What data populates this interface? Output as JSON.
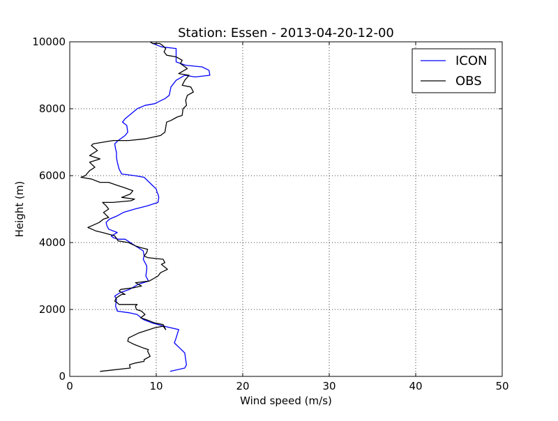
{
  "chart_data": {
    "type": "line",
    "title": "Station: Essen - 2013-04-20-12-00",
    "xlabel": "Wind speed (m/s)",
    "ylabel": "Height (m)",
    "xlim": [
      0,
      50
    ],
    "ylim": [
      0,
      10000
    ],
    "xticks": [
      0,
      10,
      20,
      30,
      40,
      50
    ],
    "yticks": [
      0,
      2000,
      4000,
      6000,
      8000,
      10000
    ],
    "grid": true,
    "legend_position": "top-right",
    "series": [
      {
        "name": "ICON",
        "color": "#0000ff",
        "points": [
          [
            11.6,
            150
          ],
          [
            13.3,
            250
          ],
          [
            13.5,
            350
          ],
          [
            13.4,
            500
          ],
          [
            13.3,
            700
          ],
          [
            12.7,
            850
          ],
          [
            12.1,
            1000
          ],
          [
            12.3,
            1150
          ],
          [
            12.6,
            1400
          ],
          [
            10.9,
            1500
          ],
          [
            9.5,
            1600
          ],
          [
            8.5,
            1700
          ],
          [
            7.8,
            1850
          ],
          [
            6.9,
            1900
          ],
          [
            5.5,
            1950
          ],
          [
            5.3,
            2100
          ],
          [
            5.4,
            2300
          ],
          [
            5.2,
            2400
          ],
          [
            5.8,
            2500
          ],
          [
            6.9,
            2600
          ],
          [
            7.9,
            2750
          ],
          [
            9.1,
            2850
          ],
          [
            8.8,
            3000
          ],
          [
            8.9,
            3200
          ],
          [
            8.9,
            3300
          ],
          [
            8.7,
            3400
          ],
          [
            8.5,
            3500
          ],
          [
            8.6,
            3600
          ],
          [
            8.5,
            3750
          ],
          [
            7.3,
            3950
          ],
          [
            7.0,
            4000
          ],
          [
            6.4,
            4100
          ],
          [
            5.6,
            4100
          ],
          [
            5.0,
            4150
          ],
          [
            4.8,
            4200
          ],
          [
            5.5,
            4300
          ],
          [
            4.5,
            4400
          ],
          [
            4.3,
            4500
          ],
          [
            4.2,
            4600
          ],
          [
            4.6,
            4700
          ],
          [
            5.5,
            4800
          ],
          [
            6.2,
            4900
          ],
          [
            7.5,
            5000
          ],
          [
            9.0,
            5100
          ],
          [
            10.2,
            5200
          ],
          [
            10.3,
            5350
          ],
          [
            10.2,
            5450
          ],
          [
            10.1,
            5500
          ],
          [
            10.0,
            5600
          ],
          [
            9.6,
            5700
          ],
          [
            9.2,
            5800
          ],
          [
            8.6,
            5950
          ],
          [
            7.5,
            6000
          ],
          [
            6.0,
            6050
          ],
          [
            5.7,
            6200
          ],
          [
            5.5,
            6400
          ],
          [
            5.4,
            6550
          ],
          [
            5.4,
            6700
          ],
          [
            5.3,
            6800
          ],
          [
            5.2,
            6950
          ],
          [
            5.6,
            7050
          ],
          [
            6.4,
            7200
          ],
          [
            6.7,
            7300
          ],
          [
            6.6,
            7500
          ],
          [
            6.1,
            7600
          ],
          [
            6.4,
            7700
          ],
          [
            7.8,
            8000
          ],
          [
            8.7,
            8100
          ],
          [
            9.8,
            8150
          ],
          [
            11.0,
            8300
          ],
          [
            11.5,
            8400
          ],
          [
            11.7,
            8650
          ],
          [
            12.3,
            8850
          ],
          [
            13.3,
            9000
          ],
          [
            14.5,
            8950
          ],
          [
            16.2,
            9000
          ],
          [
            16.1,
            9150
          ],
          [
            15.3,
            9250
          ],
          [
            13.4,
            9300
          ],
          [
            12.3,
            9400
          ],
          [
            12.3,
            9550
          ],
          [
            12.3,
            9700
          ],
          [
            12.3,
            9800
          ],
          [
            10.6,
            9850
          ],
          [
            9.6,
            9950
          ],
          [
            9.3,
            10000
          ]
        ]
      },
      {
        "name": "OBS",
        "color": "#000000",
        "points": [
          [
            3.5,
            150
          ],
          [
            7.0,
            250
          ],
          [
            6.9,
            350
          ],
          [
            7.6,
            400
          ],
          [
            8.6,
            450
          ],
          [
            8.6,
            500
          ],
          [
            9.3,
            600
          ],
          [
            9.0,
            750
          ],
          [
            9.1,
            800
          ],
          [
            8.5,
            850
          ],
          [
            7.5,
            950
          ],
          [
            6.7,
            1050
          ],
          [
            6.8,
            1150
          ],
          [
            8.0,
            1300
          ],
          [
            9.8,
            1450
          ],
          [
            10.8,
            1500
          ],
          [
            11.1,
            1400
          ],
          [
            10.8,
            1550
          ],
          [
            9.8,
            1600
          ],
          [
            8.8,
            1700
          ],
          [
            8.2,
            1750
          ],
          [
            8.7,
            1850
          ],
          [
            8.3,
            1950
          ],
          [
            7.7,
            2000
          ],
          [
            7.6,
            2100
          ],
          [
            7.8,
            2150
          ],
          [
            6.9,
            2150
          ],
          [
            6.0,
            2150
          ],
          [
            5.7,
            2150
          ],
          [
            5.5,
            2200
          ],
          [
            5.2,
            2250
          ],
          [
            5.4,
            2350
          ],
          [
            6.0,
            2450
          ],
          [
            6.4,
            2450
          ],
          [
            5.7,
            2550
          ],
          [
            5.9,
            2600
          ],
          [
            7.4,
            2650
          ],
          [
            8.3,
            2700
          ],
          [
            7.6,
            2800
          ],
          [
            9.2,
            2850
          ],
          [
            10.2,
            3000
          ],
          [
            10.5,
            3100
          ],
          [
            11.3,
            3200
          ],
          [
            10.6,
            3350
          ],
          [
            11.0,
            3400
          ],
          [
            10.8,
            3500
          ],
          [
            9.0,
            3550
          ],
          [
            8.6,
            3600
          ],
          [
            8.9,
            3700
          ],
          [
            9.0,
            3800
          ],
          [
            8.2,
            3850
          ],
          [
            7.6,
            3900
          ],
          [
            6.8,
            4000
          ],
          [
            5.6,
            4050
          ],
          [
            5.2,
            4200
          ],
          [
            4.5,
            4250
          ],
          [
            3.8,
            4300
          ],
          [
            3.0,
            4350
          ],
          [
            2.1,
            4450
          ],
          [
            3.4,
            4600
          ],
          [
            3.9,
            4700
          ],
          [
            4.5,
            4750
          ],
          [
            3.9,
            4900
          ],
          [
            4.5,
            5000
          ],
          [
            4.2,
            5100
          ],
          [
            3.8,
            5200
          ],
          [
            5.0,
            5200
          ],
          [
            7.1,
            5250
          ],
          [
            7.5,
            5300
          ],
          [
            6.0,
            5350
          ],
          [
            7.0,
            5450
          ],
          [
            7.3,
            5550
          ],
          [
            6.2,
            5650
          ],
          [
            5.6,
            5700
          ],
          [
            4.5,
            5800
          ],
          [
            3.5,
            5800
          ],
          [
            2.5,
            5900
          ],
          [
            1.3,
            5950
          ],
          [
            1.8,
            6000
          ],
          [
            2.3,
            6150
          ],
          [
            2.9,
            6250
          ],
          [
            2.3,
            6400
          ],
          [
            3.5,
            6500
          ],
          [
            2.3,
            6600
          ],
          [
            3.2,
            6750
          ],
          [
            2.5,
            6900
          ],
          [
            2.7,
            6950
          ],
          [
            5.0,
            7050
          ],
          [
            6.8,
            7050
          ],
          [
            8.7,
            7100
          ],
          [
            10.5,
            7200
          ],
          [
            11.0,
            7300
          ],
          [
            11.2,
            7600
          ],
          [
            11.7,
            7650
          ],
          [
            12.4,
            7750
          ],
          [
            13.0,
            7800
          ],
          [
            13.1,
            8000
          ],
          [
            13.5,
            8100
          ],
          [
            13.4,
            8250
          ],
          [
            13.6,
            8400
          ],
          [
            14.3,
            8500
          ],
          [
            14.0,
            8650
          ],
          [
            13.0,
            8700
          ],
          [
            13.3,
            8850
          ],
          [
            13.8,
            9000
          ],
          [
            12.6,
            9050
          ],
          [
            13.6,
            9200
          ],
          [
            12.8,
            9350
          ],
          [
            13.0,
            9450
          ],
          [
            12.3,
            9550
          ],
          [
            11.2,
            9600
          ],
          [
            10.9,
            9700
          ],
          [
            11.1,
            9800
          ],
          [
            10.7,
            9900
          ],
          [
            10.4,
            9950
          ],
          [
            9.6,
            9950
          ],
          [
            9.3,
            10000
          ]
        ]
      }
    ]
  }
}
